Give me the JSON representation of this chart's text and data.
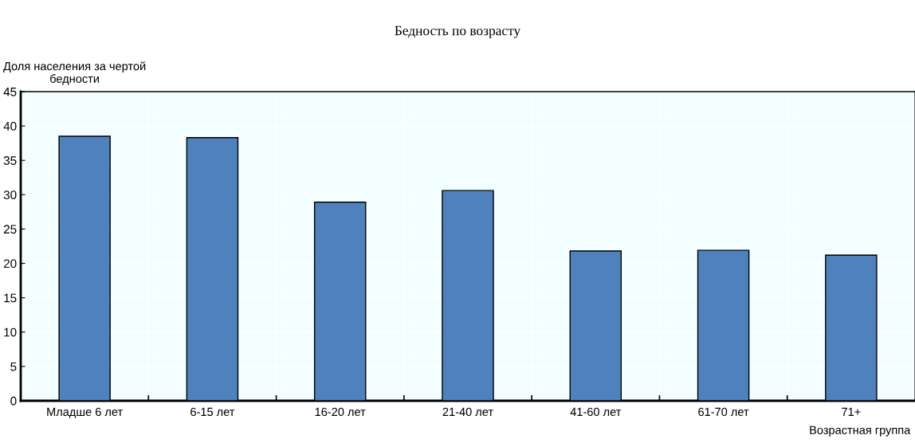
{
  "chart_data": {
    "type": "bar",
    "title": "Бедность по возрасту",
    "ylabel": "Доля населения за чертой\nбедности",
    "xlabel": "Возрастная группа",
    "categories": [
      "Младше 6 лет",
      "6-15 лет",
      "16-20 лет",
      "21-40 лет",
      "41-60 лет",
      "61-70 лет",
      "71+"
    ],
    "values": [
      38.5,
      38.3,
      28.9,
      30.6,
      21.8,
      21.9,
      21.2
    ],
    "color": "#4f81bd",
    "ylim": [
      0,
      45
    ],
    "yticks": [
      0,
      5,
      10,
      15,
      20,
      25,
      30,
      35,
      40,
      45
    ],
    "grid": true
  }
}
